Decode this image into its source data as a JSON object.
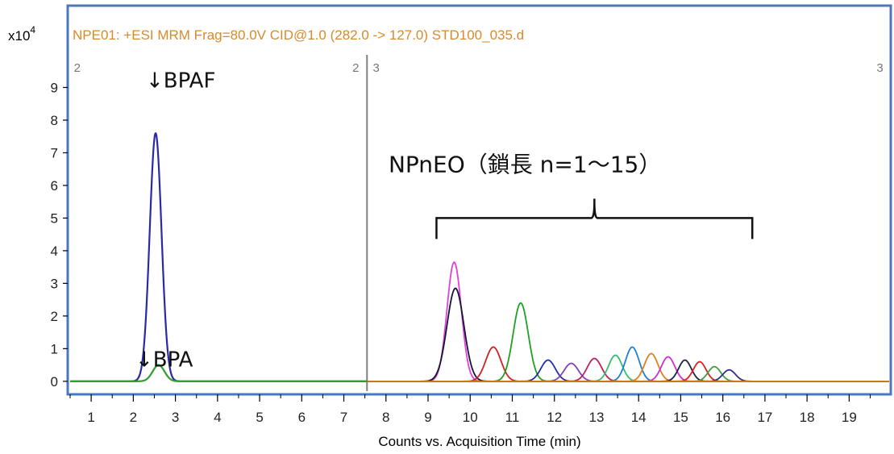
{
  "chart_data": {
    "type": "line",
    "title": "NPE01: +ESI MRM Frag=80.0V CID@1.0 (282.0 -> 127.0) STD100_035.d",
    "xlabel": "Counts vs. Acquisition Time (min)",
    "y_multiplier_label": "x10",
    "y_multiplier_exponent": "4",
    "xlim": [
      0.5,
      19.95
    ],
    "ylim": [
      -0.3,
      10
    ],
    "x_ticks": [
      "1",
      "2",
      "3",
      "4",
      "5",
      "6",
      "7",
      "8",
      "9",
      "10",
      "11",
      "12",
      "13",
      "14",
      "15",
      "16",
      "17",
      "18",
      "19"
    ],
    "y_ticks": [
      "0",
      "1",
      "2",
      "3",
      "4",
      "5",
      "6",
      "7",
      "8",
      "9"
    ],
    "segment_labels": [
      {
        "text": "2",
        "x": 0.55
      },
      {
        "text": "2",
        "x": 7.4
      },
      {
        "text": "3",
        "x": 7.65
      },
      {
        "text": "3",
        "x": 19.85
      }
    ],
    "segment_boundary_x": 7.55,
    "annotations": [
      {
        "text": "↓BPAF",
        "x": 2.3,
        "y": 9.0
      },
      {
        "text": "↓BPA",
        "x": 2.05,
        "y": 0.45
      },
      {
        "text": "NPnEO（鎖長 n=1〜15）",
        "x": 11.3,
        "y": 6.4
      }
    ],
    "brace": {
      "x_start": 9.2,
      "x_end": 16.7,
      "y": 5.0
    },
    "series": [
      {
        "color": "#2a2aa8",
        "peaks": [
          {
            "x": 2.53,
            "h": 7.6,
            "w": 0.14
          }
        ],
        "x_range": [
          0.5,
          7.55
        ]
      },
      {
        "color": "#2e9e2e",
        "peaks": [
          {
            "x": 2.6,
            "h": 0.5,
            "w": 0.14
          }
        ],
        "x_range": [
          0.5,
          7.55
        ]
      },
      {
        "color": "#e040e0",
        "peaks": [
          {
            "x": 9.62,
            "h": 3.65,
            "w": 0.17
          }
        ],
        "x_range": [
          7.55,
          19.95
        ]
      },
      {
        "color": "#151535",
        "peaks": [
          {
            "x": 9.65,
            "h": 2.85,
            "w": 0.2
          }
        ],
        "x_range": [
          7.55,
          19.95
        ]
      },
      {
        "color": "#d02020",
        "peaks": [
          {
            "x": 10.55,
            "h": 1.05,
            "w": 0.18
          }
        ],
        "x_range": [
          7.55,
          19.95
        ]
      },
      {
        "color": "#20a020",
        "peaks": [
          {
            "x": 11.2,
            "h": 2.4,
            "w": 0.18
          }
        ],
        "x_range": [
          7.55,
          19.95
        ]
      },
      {
        "color": "#2030a0",
        "peaks": [
          {
            "x": 11.85,
            "h": 0.65,
            "w": 0.17
          }
        ],
        "x_range": [
          7.55,
          19.95
        ]
      },
      {
        "color": "#8040c0",
        "peaks": [
          {
            "x": 12.4,
            "h": 0.55,
            "w": 0.17
          }
        ],
        "x_range": [
          7.55,
          19.95
        ]
      },
      {
        "color": "#c02060",
        "peaks": [
          {
            "x": 12.95,
            "h": 0.7,
            "w": 0.17
          }
        ],
        "x_range": [
          7.55,
          19.95
        ]
      },
      {
        "color": "#30c070",
        "peaks": [
          {
            "x": 13.45,
            "h": 0.8,
            "w": 0.16
          }
        ],
        "x_range": [
          7.55,
          19.95
        ]
      },
      {
        "color": "#2080d0",
        "peaks": [
          {
            "x": 13.85,
            "h": 1.05,
            "w": 0.16
          }
        ],
        "x_range": [
          7.55,
          19.95
        ]
      },
      {
        "color": "#e08020",
        "peaks": [
          {
            "x": 14.3,
            "h": 0.85,
            "w": 0.16
          }
        ],
        "x_range": [
          7.55,
          19.95
        ]
      },
      {
        "color": "#d030d0",
        "peaks": [
          {
            "x": 14.7,
            "h": 0.75,
            "w": 0.16
          }
        ],
        "x_range": [
          7.55,
          19.95
        ]
      },
      {
        "color": "#202040",
        "peaks": [
          {
            "x": 15.1,
            "h": 0.65,
            "w": 0.15
          }
        ],
        "x_range": [
          7.55,
          19.95
        ]
      },
      {
        "color": "#e02020",
        "peaks": [
          {
            "x": 15.45,
            "h": 0.6,
            "w": 0.15
          }
        ],
        "x_range": [
          7.55,
          19.95
        ]
      },
      {
        "color": "#40a040",
        "peaks": [
          {
            "x": 15.8,
            "h": 0.45,
            "w": 0.15
          }
        ],
        "x_range": [
          7.55,
          19.95
        ]
      },
      {
        "color": "#303090",
        "peaks": [
          {
            "x": 16.15,
            "h": 0.35,
            "w": 0.15
          }
        ],
        "x_range": [
          7.55,
          19.95
        ]
      },
      {
        "color": "#d08020",
        "peaks": [],
        "x_range": [
          7.55,
          19.95
        ]
      }
    ],
    "grid": false,
    "legend": "none"
  },
  "colors": {
    "frame": "#4a78c0",
    "title": "#d98a2a",
    "divider": "#808080"
  }
}
